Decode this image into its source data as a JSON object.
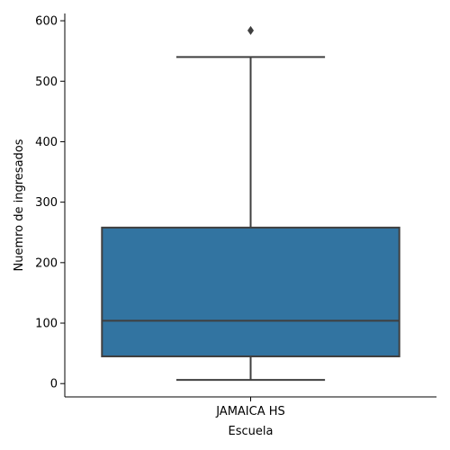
{
  "chart_data": {
    "type": "box",
    "xlabel": "Escuela",
    "ylabel": "Nuemro de ingresados",
    "categories": [
      "JAMAICA HS"
    ],
    "boxes": [
      {
        "category": "JAMAICA HS",
        "whisker_low": 6,
        "q1": 45,
        "median": 104,
        "q3": 258,
        "whisker_high": 540,
        "outliers": [
          584
        ]
      }
    ],
    "ylim": [
      -22,
      612
    ],
    "yticks": [
      0,
      100,
      200,
      300,
      400,
      500,
      600
    ],
    "grid": false,
    "legend": "none",
    "colors": {
      "box": "#3274a1",
      "line": "#3f3f3f",
      "axis": "#000000"
    }
  }
}
